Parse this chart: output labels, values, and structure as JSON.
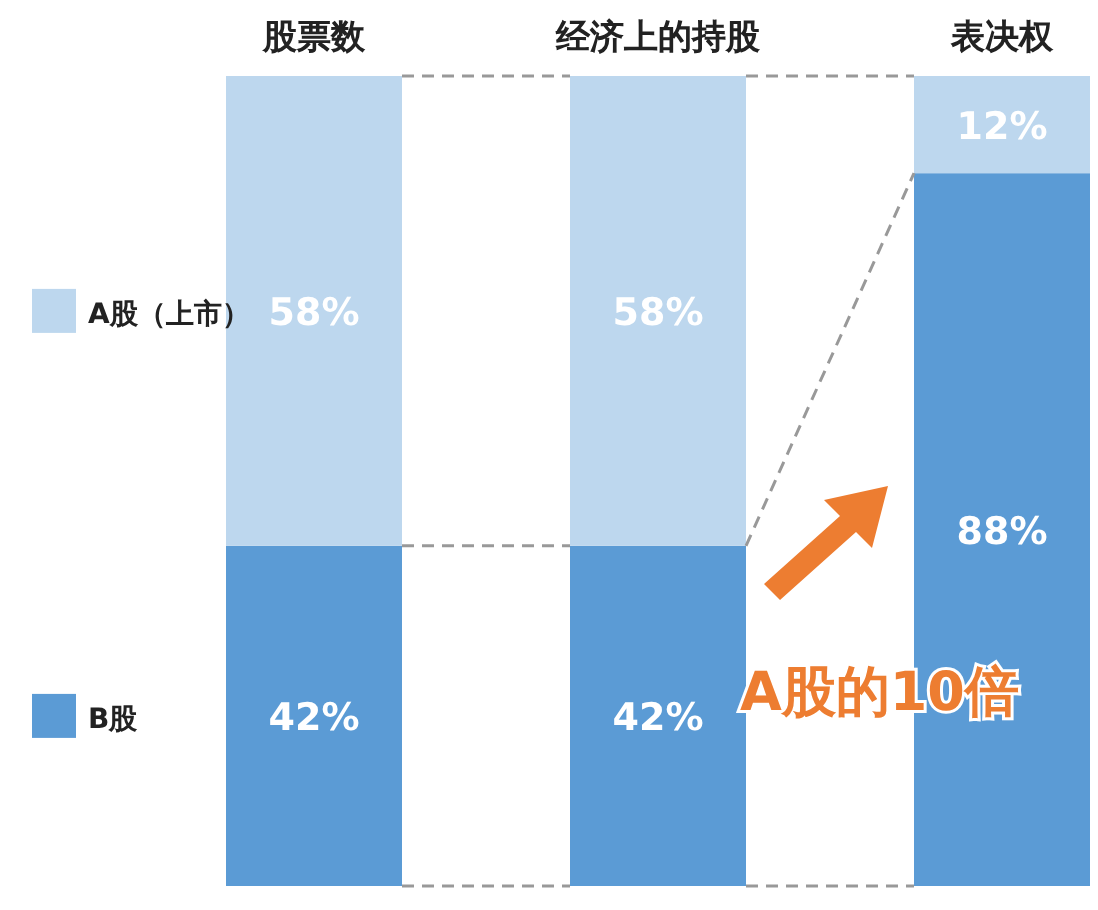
{
  "chart_data": {
    "type": "bar",
    "stacked": true,
    "categories": [
      "股票数",
      "经济上的持股",
      "表决权"
    ],
    "series": [
      {
        "name": "B股",
        "color": "#5b9bd5",
        "values": [
          42,
          42,
          88
        ],
        "value_labels": [
          "42%",
          "42%",
          "88%"
        ]
      },
      {
        "name": "A股（上市）",
        "color": "#bdd7ee",
        "values": [
          58,
          58,
          12
        ],
        "value_labels": [
          "58%",
          "58%",
          "12%"
        ]
      }
    ],
    "legend": "left",
    "annotations": [
      "A股的10倍"
    ]
  }
}
